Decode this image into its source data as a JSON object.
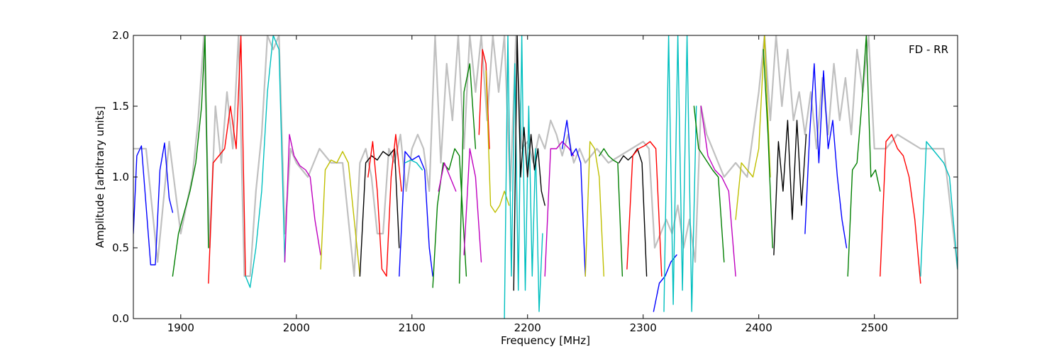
{
  "chart_data": {
    "type": "line",
    "title": "",
    "annotation": "FD - RR",
    "xlabel": "Frequency [MHz]",
    "ylabel": "Amplitude [arbitrary units]",
    "xlim": [
      1859,
      2572
    ],
    "ylim": [
      0,
      2.0
    ],
    "x_ticks": [
      1900,
      2000,
      2100,
      2200,
      2300,
      2400,
      2500
    ],
    "y_ticks": [
      0.0,
      0.5,
      1.0,
      1.5,
      2.0
    ],
    "x_tick_labels": [
      "1900",
      "2000",
      "2100",
      "2200",
      "2300",
      "2400",
      "2500"
    ],
    "y_tick_labels": [
      "0.0",
      "0.5",
      "1.0",
      "1.5",
      "2.0"
    ],
    "grid": false,
    "background_series": {
      "color": "#c0c0c0",
      "x": [
        1859,
        1870,
        1880,
        1890,
        1900,
        1910,
        1915,
        1920,
        1925,
        1930,
        1935,
        1940,
        1945,
        1950,
        1955,
        1960,
        1965,
        1970,
        1975,
        1980,
        1985,
        1990,
        1995,
        2000,
        2005,
        2010,
        2020,
        2030,
        2040,
        2050,
        2055,
        2060,
        2065,
        2070,
        2075,
        2080,
        2085,
        2090,
        2095,
        2100,
        2105,
        2110,
        2115,
        2120,
        2125,
        2130,
        2135,
        2140,
        2145,
        2150,
        2155,
        2160,
        2165,
        2170,
        2175,
        2180,
        2185,
        2190,
        2195,
        2200,
        2205,
        2210,
        2215,
        2220,
        2225,
        2230,
        2235,
        2240,
        2245,
        2250,
        2260,
        2270,
        2280,
        2290,
        2300,
        2305,
        2310,
        2315,
        2320,
        2325,
        2330,
        2335,
        2340,
        2345,
        2350,
        2355,
        2360,
        2365,
        2370,
        2380,
        2390,
        2400,
        2405,
        2410,
        2415,
        2420,
        2425,
        2430,
        2435,
        2440,
        2445,
        2450,
        2455,
        2460,
        2465,
        2470,
        2475,
        2480,
        2485,
        2490,
        2495,
        2500,
        2510,
        2520,
        2530,
        2540,
        2550,
        2560,
        2572
      ],
      "y": [
        1.2,
        1.2,
        0.4,
        1.25,
        0.6,
        1.0,
        1.4,
        2.0,
        0.5,
        1.5,
        1.1,
        1.6,
        1.2,
        2.0,
        0.3,
        0.3,
        0.9,
        1.3,
        2.0,
        1.9,
        2.0,
        0.6,
        1.2,
        1.1,
        1.05,
        1.0,
        1.2,
        1.1,
        1.1,
        0.3,
        1.1,
        1.2,
        1.0,
        0.6,
        0.6,
        1.2,
        1.1,
        1.3,
        0.9,
        1.2,
        1.3,
        1.2,
        0.9,
        2.0,
        1.1,
        1.8,
        1.4,
        2.0,
        1.2,
        2.0,
        1.6,
        2.0,
        1.4,
        2.0,
        1.6,
        2.0,
        0.9,
        2.0,
        1.2,
        1.25,
        1.1,
        1.3,
        1.2,
        1.4,
        1.3,
        1.15,
        1.3,
        1.1,
        1.2,
        1.1,
        1.2,
        1.1,
        1.15,
        1.2,
        1.25,
        1.2,
        0.5,
        0.6,
        0.7,
        0.6,
        0.8,
        0.5,
        0.7,
        0.4,
        1.5,
        1.3,
        1.2,
        1.1,
        1.0,
        1.1,
        1.0,
        1.6,
        2.0,
        1.4,
        2.0,
        1.5,
        1.9,
        1.4,
        1.6,
        1.3,
        1.6,
        1.2,
        1.7,
        1.3,
        1.8,
        1.4,
        1.7,
        1.3,
        1.9,
        1.6,
        2.0,
        1.2,
        1.2,
        1.3,
        1.25,
        1.2,
        1.2,
        1.2,
        0.35
      ]
    },
    "series": [
      {
        "color": "#0000ff",
        "x": [
          1859,
          1862,
          1866,
          1870,
          1874,
          1878,
          1882,
          1886,
          1890,
          1893
        ],
        "y": [
          0.6,
          1.15,
          1.22,
          0.8,
          0.38,
          0.38,
          1.05,
          1.24,
          0.85,
          0.75
        ]
      },
      {
        "color": "#007f00",
        "x": [
          1893,
          1898,
          1903,
          1908,
          1913,
          1918,
          1921,
          1924
        ],
        "y": [
          0.3,
          0.6,
          0.75,
          0.9,
          1.1,
          1.5,
          2.0,
          0.5
        ]
      },
      {
        "color": "#ff0000",
        "x": [
          1924,
          1928,
          1933,
          1938,
          1943,
          1948,
          1952,
          1956
        ],
        "y": [
          0.25,
          1.1,
          1.15,
          1.2,
          1.5,
          1.2,
          2.0,
          0.3
        ]
      },
      {
        "color": "#00bfbf",
        "x": [
          1956,
          1960,
          1965,
          1970,
          1975,
          1980,
          1985,
          1990
        ],
        "y": [
          0.3,
          0.22,
          0.5,
          0.9,
          1.6,
          2.0,
          1.9,
          0.4
        ]
      },
      {
        "color": "#bf00bf",
        "x": [
          1990,
          1994,
          1998,
          2003,
          2008,
          2012,
          2016,
          2021
        ],
        "y": [
          0.4,
          1.3,
          1.15,
          1.08,
          1.05,
          1.0,
          0.7,
          0.45
        ]
      },
      {
        "color": "#bfbf00",
        "x": [
          2021,
          2025,
          2030,
          2035,
          2040,
          2045,
          2050,
          2055
        ],
        "y": [
          0.35,
          1.05,
          1.12,
          1.1,
          1.18,
          1.1,
          0.7,
          0.3
        ]
      },
      {
        "color": "#000000",
        "x": [
          2055,
          2060,
          2065,
          2070,
          2075,
          2080,
          2085,
          2089
        ],
        "y": [
          0.3,
          1.1,
          1.15,
          1.12,
          1.18,
          1.15,
          1.2,
          0.5
        ]
      },
      {
        "color": "#ff0000",
        "x": [
          2062,
          2066,
          2070,
          2074,
          2078,
          2082,
          2086,
          2091
        ],
        "y": [
          1.0,
          1.25,
          0.9,
          0.35,
          0.3,
          1.0,
          1.3,
          0.9
        ]
      },
      {
        "color": "#0000ff",
        "x": [
          2089,
          2094,
          2100,
          2106,
          2111,
          2115,
          2118
        ],
        "y": [
          0.3,
          1.18,
          1.12,
          1.15,
          1.05,
          0.5,
          0.3
        ]
      },
      {
        "color": "#00bfbf",
        "x": [
          2094,
          2099,
          2104,
          2109
        ],
        "y": [
          1.1,
          1.12,
          1.1,
          1.05
        ]
      },
      {
        "color": "#007f00",
        "x": [
          2118,
          2122,
          2127,
          2132,
          2137,
          2141,
          2147
        ],
        "y": [
          0.22,
          0.8,
          1.1,
          1.05,
          1.2,
          1.15,
          0.3
        ]
      },
      {
        "color": "#bf00bf",
        "x": [
          2123,
          2128,
          2133,
          2138
        ],
        "y": [
          0.9,
          1.1,
          1.0,
          0.9
        ]
      },
      {
        "color": "#007f00",
        "x": [
          2141,
          2145,
          2150,
          2155
        ],
        "y": [
          0.25,
          1.6,
          1.8,
          1.2
        ]
      },
      {
        "color": "#bf00bf",
        "x": [
          2145,
          2150,
          2155,
          2160
        ],
        "y": [
          0.45,
          1.2,
          1.0,
          0.4
        ]
      },
      {
        "color": "#ff0000",
        "x": [
          2158,
          2161,
          2164,
          2167
        ],
        "y": [
          1.3,
          1.9,
          1.8,
          1.2
        ]
      },
      {
        "color": "#bfbf00",
        "x": [
          2164,
          2168,
          2172,
          2176,
          2180,
          2184
        ],
        "y": [
          1.75,
          0.8,
          0.75,
          0.8,
          0.9,
          0.8
        ]
      },
      {
        "color": "#00bfbf",
        "x": [
          2180,
          2183,
          2186,
          2189,
          2192,
          2195,
          2198,
          2201,
          2204,
          2207,
          2210,
          2213
        ],
        "y": [
          0.0,
          2.0,
          0.3,
          1.8,
          0.2,
          2.0,
          0.2,
          1.5,
          0.3,
          1.2,
          0.05,
          0.6
        ]
      },
      {
        "color": "#000000",
        "x": [
          2188,
          2191,
          2194,
          2197,
          2200,
          2203,
          2206,
          2209,
          2212,
          2215
        ],
        "y": [
          0.2,
          2.0,
          1.0,
          1.35,
          1.0,
          1.3,
          1.05,
          1.2,
          0.9,
          0.8
        ]
      },
      {
        "color": "#bf00bf",
        "x": [
          2215,
          2220,
          2225,
          2230,
          2236,
          2240
        ],
        "y": [
          0.3,
          1.2,
          1.2,
          1.25,
          1.2,
          1.15
        ]
      },
      {
        "color": "#0000ff",
        "x": [
          2230,
          2234,
          2238,
          2242,
          2246,
          2250
        ],
        "y": [
          1.2,
          1.4,
          1.15,
          1.2,
          1.1,
          0.3
        ]
      },
      {
        "color": "#bfbf00",
        "x": [
          2250,
          2254,
          2258,
          2262,
          2266
        ],
        "y": [
          0.3,
          1.25,
          1.2,
          1.0,
          0.3
        ]
      },
      {
        "color": "#007f00",
        "x": [
          2262,
          2266,
          2270,
          2274,
          2278,
          2282
        ],
        "y": [
          1.15,
          1.2,
          1.15,
          1.12,
          1.1,
          0.3
        ]
      },
      {
        "color": "#000000",
        "x": [
          2279,
          2283,
          2287,
          2291,
          2295,
          2299,
          2303
        ],
        "y": [
          1.1,
          1.15,
          1.12,
          1.15,
          1.2,
          1.1,
          0.3
        ]
      },
      {
        "color": "#ff0000",
        "x": [
          2286,
          2291,
          2296,
          2301,
          2306,
          2311,
          2316
        ],
        "y": [
          0.35,
          1.15,
          1.2,
          1.22,
          1.25,
          1.2,
          0.3
        ]
      },
      {
        "color": "#0000ff",
        "x": [
          2309,
          2314,
          2319,
          2324,
          2329
        ],
        "y": [
          0.05,
          0.25,
          0.3,
          0.4,
          0.45
        ]
      },
      {
        "color": "#00bfbf",
        "x": [
          2318,
          2322,
          2326,
          2330,
          2334,
          2338,
          2342,
          2346
        ],
        "y": [
          0.05,
          2.0,
          0.1,
          2.0,
          0.2,
          2.0,
          0.05,
          1.5
        ]
      },
      {
        "color": "#007f00",
        "x": [
          2344,
          2348,
          2352,
          2356,
          2360,
          2365,
          2370
        ],
        "y": [
          1.5,
          1.2,
          1.15,
          1.1,
          1.05,
          1.0,
          0.4
        ]
      },
      {
        "color": "#bf00bf",
        "x": [
          2350,
          2356,
          2362,
          2368,
          2374,
          2380
        ],
        "y": [
          1.5,
          1.15,
          1.05,
          1.0,
          0.9,
          0.3
        ]
      },
      {
        "color": "#bfbf00",
        "x": [
          2380,
          2385,
          2390,
          2395,
          2400,
          2405,
          2410
        ],
        "y": [
          0.7,
          1.1,
          1.05,
          1.0,
          1.2,
          2.0,
          1.0
        ]
      },
      {
        "color": "#007f00",
        "x": [
          2404,
          2408,
          2412
        ],
        "y": [
          1.9,
          1.3,
          0.5
        ]
      },
      {
        "color": "#000000",
        "x": [
          2413,
          2417,
          2421,
          2425,
          2429,
          2433,
          2437,
          2441
        ],
        "y": [
          0.45,
          1.25,
          0.9,
          1.4,
          0.7,
          1.4,
          0.8,
          1.3
        ]
      },
      {
        "color": "#0000ff",
        "x": [
          2440,
          2444,
          2448,
          2452,
          2456,
          2460,
          2464,
          2468,
          2472,
          2476
        ],
        "y": [
          0.6,
          1.3,
          1.8,
          1.1,
          1.75,
          1.2,
          1.4,
          1.0,
          0.7,
          0.5
        ]
      },
      {
        "color": "#007f00",
        "x": [
          2477,
          2481,
          2485,
          2489,
          2493,
          2497,
          2501,
          2505
        ],
        "y": [
          0.3,
          1.05,
          1.1,
          1.5,
          2.0,
          1.0,
          1.05,
          0.9
        ]
      },
      {
        "color": "#ff0000",
        "x": [
          2505,
          2510,
          2515,
          2520,
          2525,
          2530,
          2535,
          2540
        ],
        "y": [
          0.3,
          1.25,
          1.3,
          1.2,
          1.15,
          1.0,
          0.7,
          0.25
        ]
      },
      {
        "color": "#00bfbf",
        "x": [
          2540,
          2545,
          2550,
          2555,
          2560,
          2565,
          2572
        ],
        "y": [
          0.3,
          1.25,
          1.2,
          1.15,
          1.1,
          1.0,
          0.35
        ]
      }
    ]
  }
}
